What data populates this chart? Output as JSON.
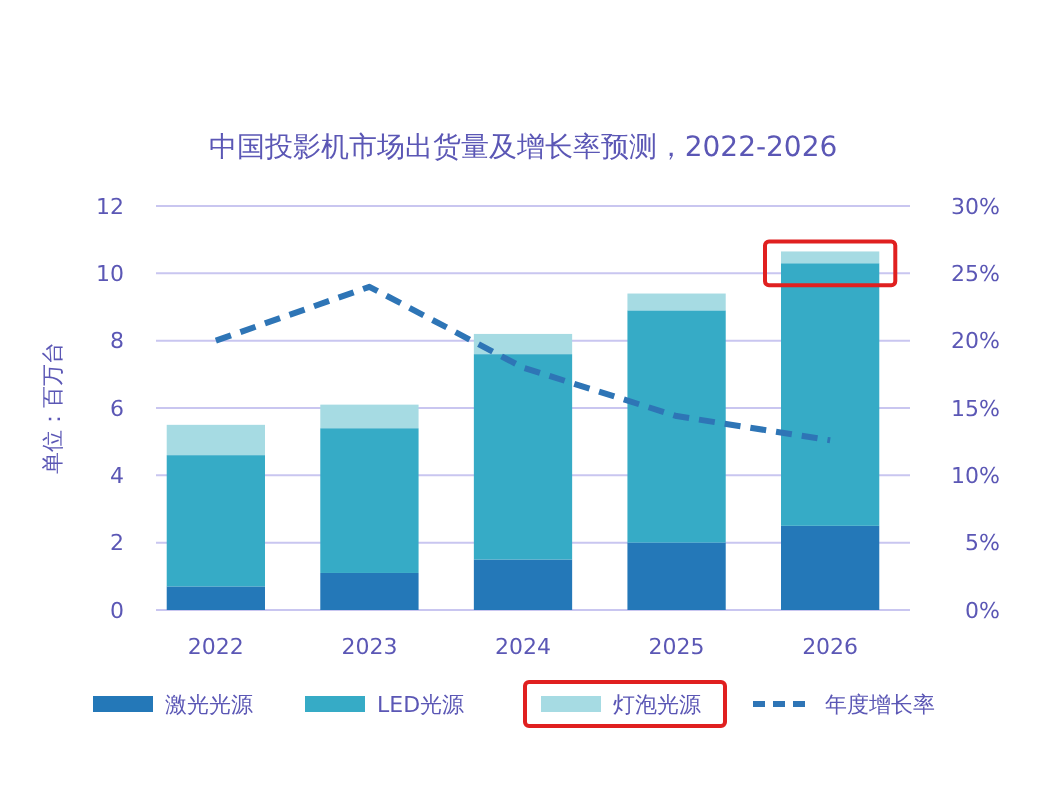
{
  "chart_data": {
    "type": "bar",
    "title": "中国投影机市场出货量及增长率预测，2022-2026",
    "ylabel": "单位：百万台",
    "stacked": true,
    "categories": [
      "2022",
      "2023",
      "2024",
      "2025",
      "2026"
    ],
    "series": [
      {
        "name": "激光光源",
        "color": "#2478b8",
        "values": [
          0.7,
          1.1,
          1.5,
          2.0,
          2.5
        ]
      },
      {
        "name": "LED光源",
        "color": "#36abc6",
        "values": [
          3.9,
          4.3,
          6.1,
          6.9,
          7.8
        ]
      },
      {
        "name": "灯泡光源",
        "color": "#a6dbe3",
        "values": [
          0.9,
          0.7,
          0.6,
          0.5,
          0.35
        ]
      },
      {
        "name": "年度增长率",
        "type": "line",
        "axis": "y2",
        "color": "#2e75b6",
        "line_style": "dashed",
        "marker": "none",
        "values": [
          20,
          24,
          18,
          14.4,
          12.6
        ]
      }
    ],
    "ylim": [
      0,
      12
    ],
    "yticks": [
      0,
      2,
      4,
      6,
      8,
      10,
      12
    ],
    "y2lim": [
      0,
      30
    ],
    "y2ticks": [
      {
        "value": 0,
        "label": "0%"
      },
      {
        "value": 5,
        "label": "5%"
      },
      {
        "value": 10,
        "label": "10%"
      },
      {
        "value": 15,
        "label": "15%"
      },
      {
        "value": 20,
        "label": "20%"
      },
      {
        "value": 25,
        "label": "25%"
      },
      {
        "value": 30,
        "label": "30%"
      }
    ],
    "grid": "y",
    "legend": "bottom"
  }
}
